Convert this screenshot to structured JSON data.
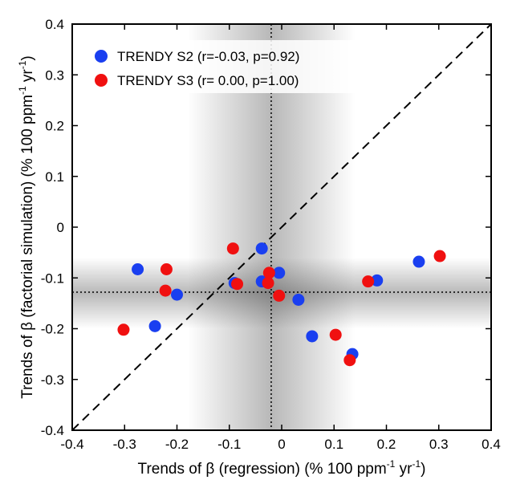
{
  "chart_data": {
    "type": "scatter",
    "title": "",
    "xlabel": "Trends of β (regression) (% 100 ppm⁻¹ yr⁻¹)",
    "ylabel": "Trends of β (factorial simulation) (% 100 ppm⁻¹ yr⁻¹)",
    "xlabel_parts": {
      "main": "Trends of β (regression) (% 100 ppm",
      "exp1": "-1",
      "mid": " yr",
      "exp2": "-1",
      "end": ")"
    },
    "ylabel_parts": {
      "main": "Trends of β (factorial simulation) (% 100 ppm",
      "exp1": "-1",
      "mid": " yr",
      "exp2": "-1",
      "end": ")"
    },
    "xlim": [
      -0.4,
      0.4
    ],
    "ylim": [
      -0.4,
      0.4
    ],
    "xticks": [
      -0.4,
      -0.3,
      -0.2,
      -0.1,
      0,
      0.1,
      0.2,
      0.3,
      0.4
    ],
    "yticks": [
      -0.4,
      -0.3,
      -0.2,
      -0.1,
      0,
      0.1,
      0.2,
      0.3,
      0.4
    ],
    "xtick_labels": [
      "-0.4",
      "-0.3",
      "-0.2",
      "-0.1",
      "0",
      "0.1",
      "0.2",
      "0.3",
      "0.4"
    ],
    "ytick_labels": [
      "-0.4",
      "-0.3",
      "-0.2",
      "-0.1",
      "0",
      "0.1",
      "0.2",
      "0.3",
      "0.4"
    ],
    "grid": false,
    "legend_position": "top-left",
    "identity_line": true,
    "reference_lines": {
      "x": -0.02,
      "y": -0.128
    },
    "uncertainty_bands": {
      "x_range": [
        -0.18,
        0.14
      ],
      "y_range": [
        -0.2,
        -0.06
      ]
    },
    "series": [
      {
        "name": "TRENDY S2 (r=-0.03, p=0.92)",
        "color": "#1a3ff0",
        "points": [
          [
            -0.275,
            -0.083
          ],
          [
            -0.242,
            -0.195
          ],
          [
            -0.2,
            -0.133
          ],
          [
            -0.09,
            -0.11
          ],
          [
            -0.038,
            -0.042
          ],
          [
            -0.038,
            -0.107
          ],
          [
            -0.005,
            -0.09
          ],
          [
            0.032,
            -0.143
          ],
          [
            0.058,
            -0.215
          ],
          [
            0.135,
            -0.25
          ],
          [
            0.182,
            -0.105
          ],
          [
            0.262,
            -0.068
          ]
        ]
      },
      {
        "name": "TRENDY S3 (r= 0.00, p=1.00)",
        "color": "#f01010",
        "points": [
          [
            -0.302,
            -0.202
          ],
          [
            -0.22,
            -0.083
          ],
          [
            -0.222,
            -0.125
          ],
          [
            -0.093,
            -0.042
          ],
          [
            -0.085,
            -0.112
          ],
          [
            -0.024,
            -0.09
          ],
          [
            -0.026,
            -0.11
          ],
          [
            -0.005,
            -0.135
          ],
          [
            0.103,
            -0.212
          ],
          [
            0.13,
            -0.262
          ],
          [
            0.165,
            -0.107
          ],
          [
            0.302,
            -0.057
          ]
        ]
      }
    ]
  }
}
